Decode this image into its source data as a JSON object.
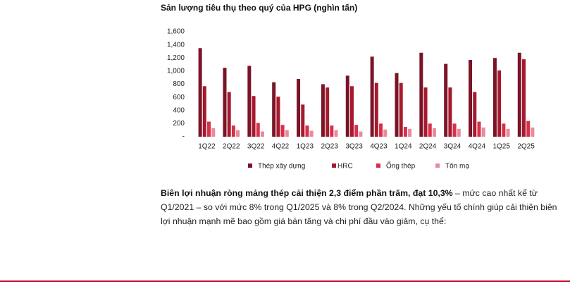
{
  "chart_data": {
    "type": "bar",
    "title": "Sản lượng tiêu thụ theo quý của HPG (nghìn tấn)",
    "categories": [
      "1Q22",
      "2Q22",
      "3Q22",
      "4Q22",
      "1Q23",
      "2Q23",
      "3Q23",
      "4Q23",
      "1Q24",
      "2Q24",
      "3Q24",
      "4Q24",
      "1Q25",
      "2Q25"
    ],
    "series": [
      {
        "name": "Thép xây dựng",
        "color": "#7a1426",
        "values": [
          1350,
          1050,
          1080,
          830,
          880,
          800,
          930,
          1220,
          970,
          1280,
          1110,
          1170,
          1200,
          1280
        ]
      },
      {
        "name": "HRC",
        "color": "#a6192e",
        "values": [
          770,
          680,
          620,
          610,
          490,
          750,
          770,
          820,
          820,
          750,
          750,
          680,
          1010,
          1180
        ]
      },
      {
        "name": "Ống thép",
        "color": "#d6304b",
        "values": [
          230,
          170,
          210,
          180,
          170,
          170,
          180,
          200,
          150,
          200,
          200,
          230,
          200,
          240
        ]
      },
      {
        "name": "Tôn mạ",
        "color": "#e98a9c",
        "values": [
          130,
          100,
          80,
          100,
          90,
          100,
          80,
          110,
          120,
          130,
          120,
          140,
          120,
          140
        ]
      }
    ],
    "ylim": [
      0,
      1600
    ],
    "yticks": [
      {
        "value": 0,
        "label": "-"
      },
      200,
      400,
      600,
      800,
      {
        "value": 1000,
        "label": "1,000"
      },
      {
        "value": 1200,
        "label": "1,200"
      },
      {
        "value": 1400,
        "label": "1,400"
      },
      {
        "value": 1600,
        "label": "1,600"
      }
    ],
    "grid": false,
    "legend": "bottom"
  },
  "paragraph": {
    "bold": "Biên lợi nhuận ròng mảng thép cải thiện 2,3 điểm phần trăm, đạt 10,3%",
    "rest": " – mức cao nhất kể từ Q1/2021 – so với mức 8% trong Q1/2025 và 8% trong Q2/2024. Những yếu tố chính giúp cải thiện biên lợi nhuận mạnh mẽ bao gồm giá bán tăng và chi phí đầu vào giảm, cụ thể:"
  }
}
